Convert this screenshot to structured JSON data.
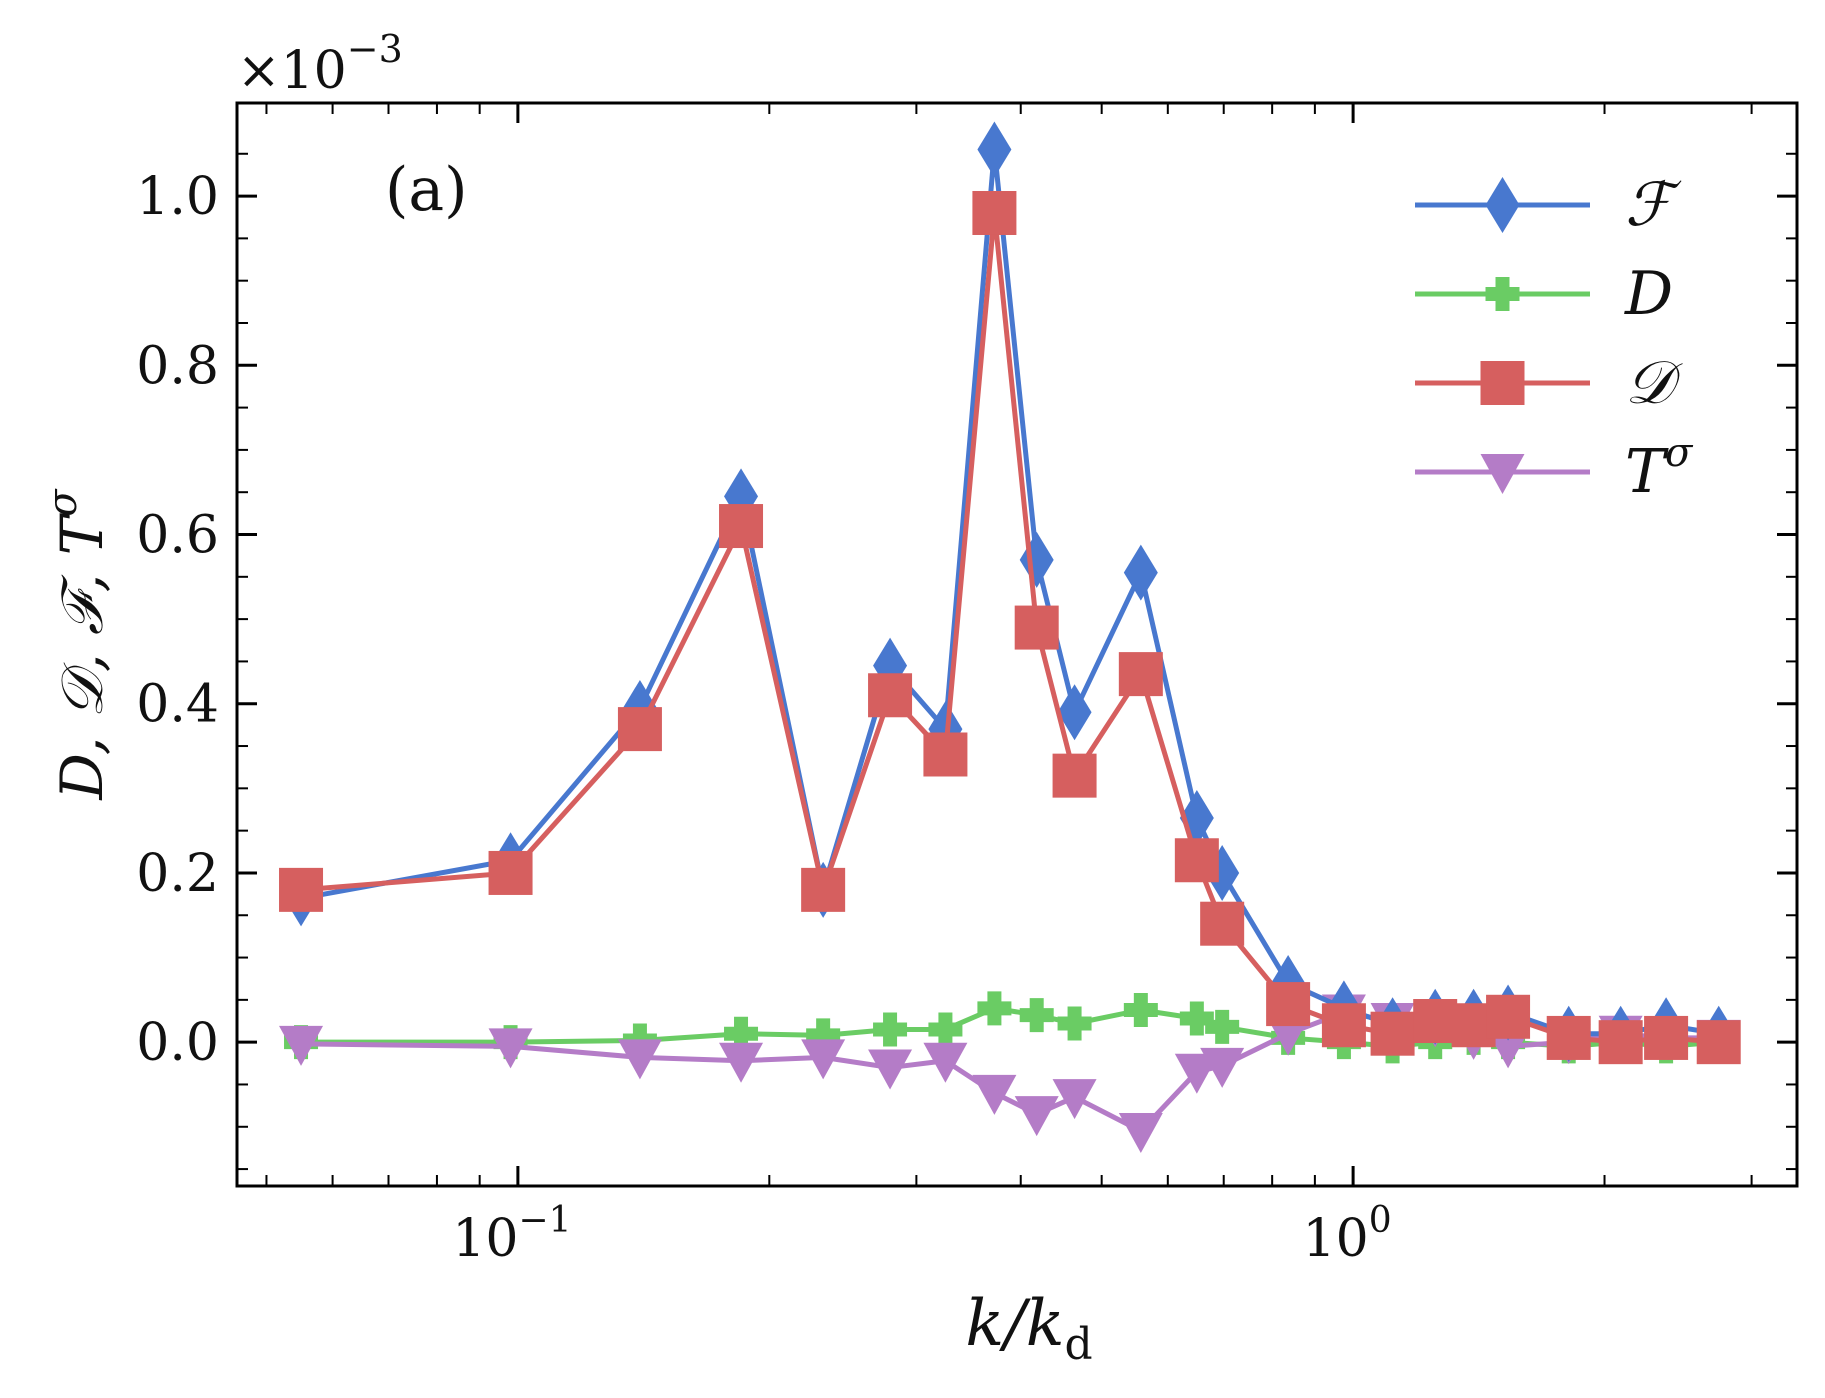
{
  "chart_data": {
    "type": "line",
    "panel_label": "(a)",
    "xlabel": "k/k_d",
    "xlabel_parts": {
      "main": "k/k",
      "sub": "d"
    },
    "ylabel": "D, 𝒟, ℱ, T^σ",
    "ylabel_parts": {
      "main": "D, 𝒟, ℱ, T",
      "sup": "σ"
    },
    "y_multiplier": "×10⁻³",
    "y_multiplier_parts": {
      "base": "×10",
      "exp": "−3"
    },
    "x_scale": "log",
    "xlim": [
      0.0461,
      3.4
    ],
    "ylim": [
      -0.17,
      1.11
    ],
    "x_ticks": [
      {
        "value": 0.1,
        "label_base": "10",
        "label_exp": "−1"
      },
      {
        "value": 1.0,
        "label_base": "10",
        "label_exp": "0"
      }
    ],
    "y_ticks": [
      {
        "value": 0.0,
        "label": "0.0"
      },
      {
        "value": 0.2,
        "label": "0.2"
      },
      {
        "value": 0.4,
        "label": "0.4"
      },
      {
        "value": 0.6,
        "label": "0.6"
      },
      {
        "value": 0.8,
        "label": "0.8"
      },
      {
        "value": 1.0,
        "label": "1.0"
      }
    ],
    "legend_position": "top-right",
    "x": [
      0.055,
      0.098,
      0.14,
      0.185,
      0.232,
      0.279,
      0.325,
      0.372,
      0.418,
      0.464,
      0.557,
      0.65,
      0.697,
      0.836,
      0.975,
      1.115,
      1.254,
      1.394,
      1.533,
      1.812,
      2.091,
      2.37,
      2.74
    ],
    "series": [
      {
        "name": "ℱ",
        "color": "#4878cf",
        "marker": "diamond",
        "values": [
          0.17,
          0.215,
          0.395,
          0.645,
          0.18,
          0.445,
          0.37,
          1.055,
          0.57,
          0.39,
          0.555,
          0.265,
          0.2,
          0.07,
          0.04,
          0.02,
          0.03,
          0.03,
          0.035,
          0.01,
          0.01,
          0.02,
          0.01
        ]
      },
      {
        "name": "D",
        "color": "#6acc64",
        "marker": "plus",
        "values": [
          0.0,
          0.0,
          0.002,
          0.01,
          0.008,
          0.015,
          0.015,
          0.04,
          0.032,
          0.022,
          0.038,
          0.028,
          0.018,
          0.005,
          0.0,
          -0.005,
          0.0,
          0.005,
          0.0,
          -0.005,
          0.0,
          -0.005,
          0.0
        ]
      },
      {
        "name": "𝒟",
        "color": "#d65f5f",
        "marker": "square",
        "values": [
          0.18,
          0.2,
          0.37,
          0.61,
          0.18,
          0.41,
          0.34,
          0.98,
          0.49,
          0.315,
          0.435,
          0.215,
          0.14,
          0.045,
          0.02,
          0.01,
          0.025,
          0.02,
          0.03,
          0.005,
          0.0,
          0.005,
          0.0
        ]
      },
      {
        "name": "T^σ",
        "name_parts": {
          "main": "T",
          "sup": "σ"
        },
        "color": "#b47cc7",
        "marker": "triangle-down",
        "values": [
          -0.002,
          -0.005,
          -0.018,
          -0.022,
          -0.018,
          -0.03,
          -0.022,
          -0.06,
          -0.085,
          -0.065,
          -0.105,
          -0.035,
          -0.028,
          0.01,
          0.035,
          0.025,
          0.02,
          0.005,
          -0.005,
          0.0,
          0.01,
          0.005,
          0.005
        ]
      }
    ]
  }
}
